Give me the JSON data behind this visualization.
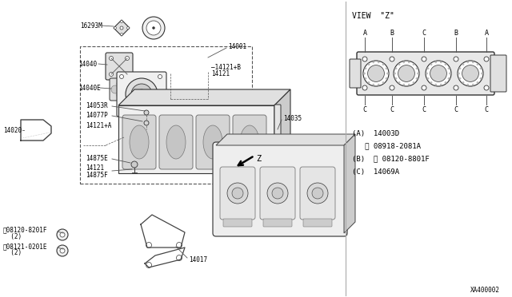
{
  "bg_color": "#ffffff",
  "diagram_code": "XA400002",
  "view_z_title": "VIEW  \"Z\"",
  "top_labels": [
    "A",
    "B",
    "C",
    "B",
    "A"
  ],
  "bot_labels": [
    "C",
    "C",
    "C",
    "C",
    "C"
  ],
  "legend_items": [
    "(A)  14003D",
    "   ⓓ 08918-2081A",
    "(B)  Ⓑ 08120-8801F",
    "(C)  14069A"
  ],
  "line_color": "#333333",
  "fill_light": "#f0f0f0",
  "fill_mid": "#e0e0e0",
  "fill_dark": "#cccccc"
}
